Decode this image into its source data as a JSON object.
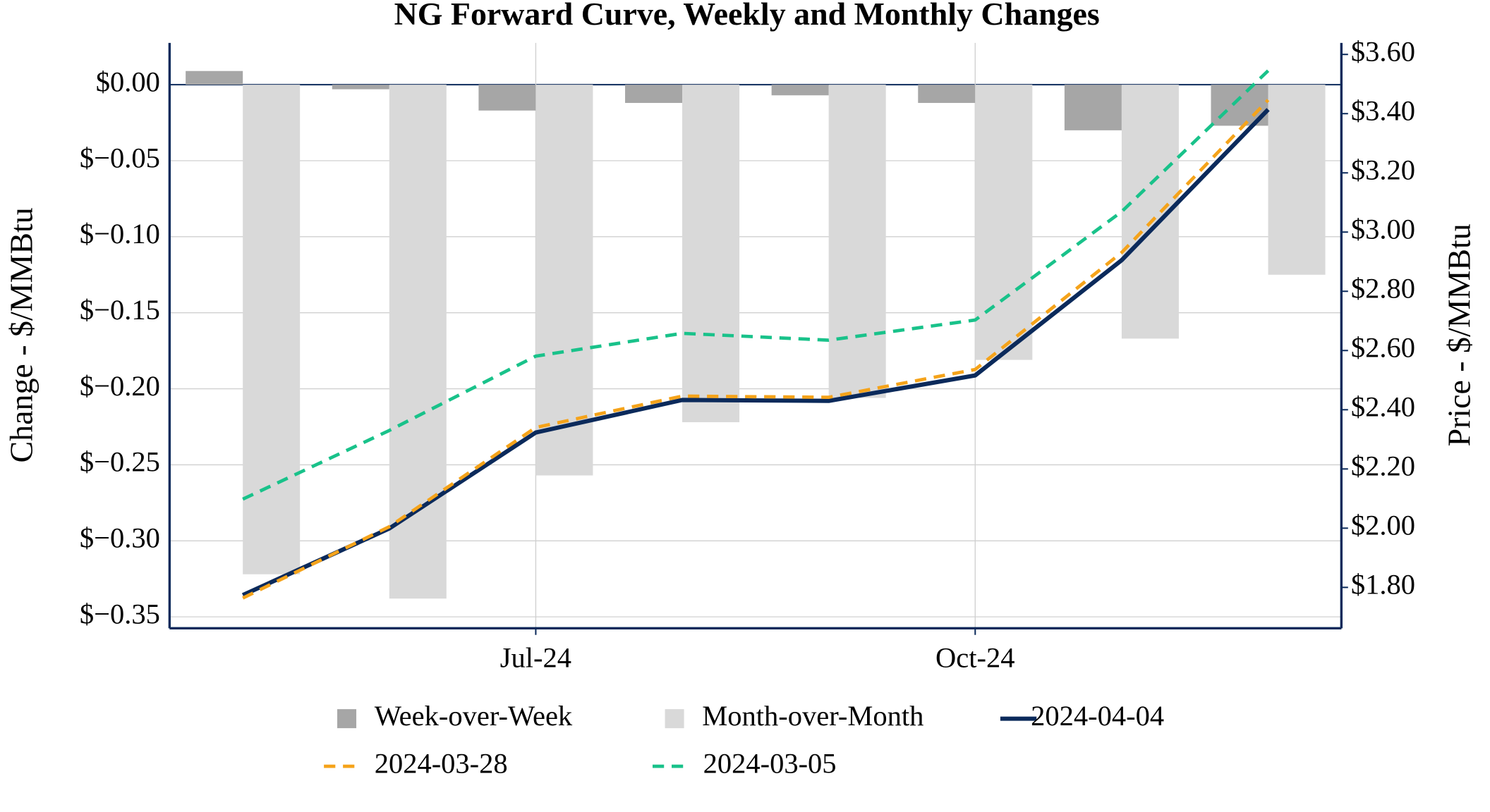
{
  "chart_data": {
    "type": "combo",
    "title": "NG Forward Curve, Weekly and Monthly Changes",
    "y_label": "Change - $/MMBtu",
    "y2_label": "Price - $/MMBtu",
    "categories": [
      null,
      null,
      "Jul-24",
      null,
      null,
      "Oct-24",
      null,
      null
    ],
    "ylim": [
      -0.3575,
      0.0275
    ],
    "yticks": [
      {
        "value": 0,
        "label": "$0.00"
      },
      {
        "value": -0.05,
        "label": "$−0.05"
      },
      {
        "value": -0.1,
        "label": "$−0.10"
      },
      {
        "value": -0.15,
        "label": "$−0.15"
      },
      {
        "value": -0.2,
        "label": "$−0.20"
      },
      {
        "value": -0.25,
        "label": "$−0.25"
      },
      {
        "value": -0.3,
        "label": "$−0.30"
      },
      {
        "value": -0.35,
        "label": "$−0.35"
      }
    ],
    "y2lim": [
      1.662,
      3.639
    ],
    "y2ticks": [
      {
        "value": 3.6,
        "label": "$3.60"
      },
      {
        "value": 3.4,
        "label": "$3.40"
      },
      {
        "value": 3.2,
        "label": "$3.20"
      },
      {
        "value": 3.0,
        "label": "$3.00"
      },
      {
        "value": 2.8,
        "label": "$2.80"
      },
      {
        "value": 2.6,
        "label": "$2.60"
      },
      {
        "value": 2.4,
        "label": "$2.40"
      },
      {
        "value": 2.2,
        "label": "$2.20"
      },
      {
        "value": 2.0,
        "label": "$2.00"
      },
      {
        "value": 1.8,
        "label": "$1.80"
      }
    ],
    "grid": true,
    "series": [
      {
        "name": "Week-over-Week",
        "type": "bar",
        "color": "#a6a6a6",
        "values": [
          0.009,
          -0.003,
          -0.017,
          -0.012,
          -0.007,
          -0.012,
          -0.03,
          -0.027
        ]
      },
      {
        "name": "Month-over-Month",
        "type": "bar",
        "color": "#d9d9d9",
        "values": [
          -0.322,
          -0.338,
          -0.257,
          -0.222,
          -0.206,
          -0.181,
          -0.167,
          -0.125
        ]
      },
      {
        "name": "2024-04-04",
        "type": "line",
        "axis": "y2",
        "color": "#0b2a5b",
        "dashed": false,
        "values": [
          1.774,
          1.999,
          2.323,
          2.433,
          2.43,
          2.516,
          2.905,
          3.414
        ]
      },
      {
        "name": "2024-03-28",
        "type": "line",
        "axis": "y2",
        "color": "#f5a31a",
        "dashed": true,
        "values": [
          1.764,
          2.005,
          2.34,
          2.446,
          2.442,
          2.536,
          2.931,
          3.446
        ]
      },
      {
        "name": "2024-03-05",
        "type": "line",
        "axis": "y2",
        "color": "#19c28a",
        "dashed": true,
        "values": [
          2.098,
          2.33,
          2.581,
          2.658,
          2.635,
          2.703,
          3.069,
          3.545
        ]
      }
    ]
  }
}
